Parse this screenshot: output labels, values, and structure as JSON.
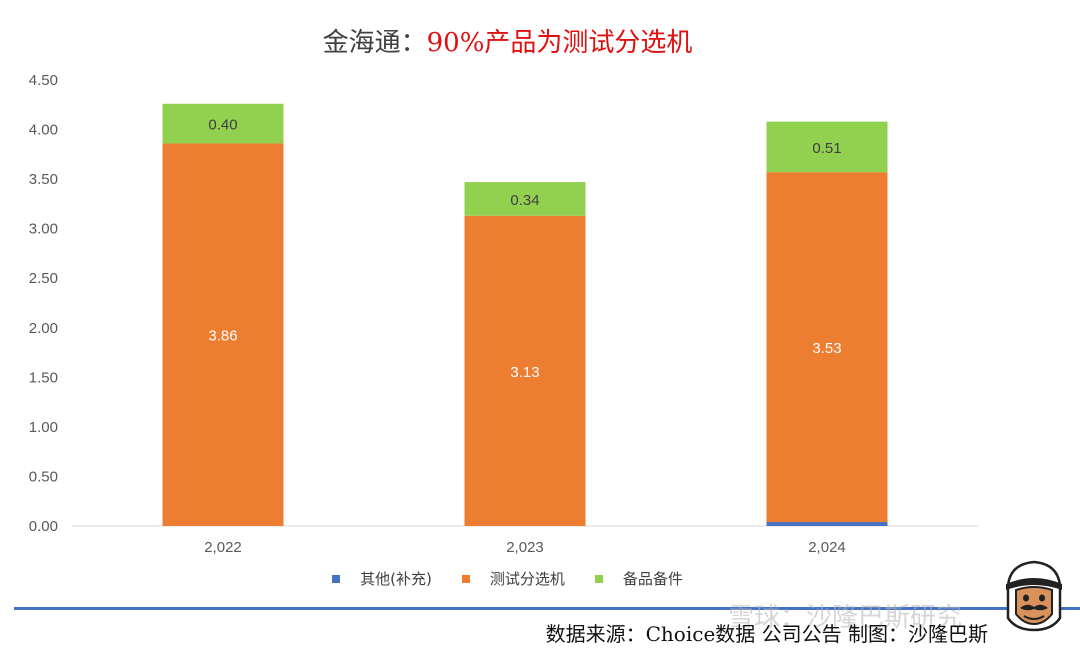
{
  "title": {
    "prefix": "金海通：",
    "highlight": "90%产品为测试分选机"
  },
  "source_text": "数据来源：Choice数据  公司公告  制图：沙隆巴斯",
  "watermark_text": "雪球：沙隆巴斯研究",
  "colors": {
    "other": "#4472c4",
    "sorter": "#ed7d31",
    "spares": "#92d050",
    "title_highlight": "#e01010",
    "rule": "#4472c4"
  },
  "legend": [
    {
      "label": "其他(补充)",
      "color": "#4472c4"
    },
    {
      "label": "测试分选机",
      "color": "#ed7d31"
    },
    {
      "label": "备品备件",
      "color": "#92d050"
    }
  ],
  "chart_data": {
    "type": "bar",
    "stacked": true,
    "categories": [
      "2,022",
      "2,023",
      "2,024"
    ],
    "series": [
      {
        "name": "其他(补充)",
        "values": [
          0,
          0,
          0.04
        ],
        "labels": [
          "",
          "",
          ""
        ]
      },
      {
        "name": "测试分选机",
        "values": [
          3.86,
          3.13,
          3.53
        ],
        "labels": [
          "3.86",
          "3.13",
          "3.53"
        ]
      },
      {
        "name": "备品备件",
        "values": [
          0.4,
          0.34,
          0.51
        ],
        "labels": [
          "0.40",
          "0.34",
          "0.51"
        ]
      }
    ],
    "ylim": [
      0,
      4.5
    ],
    "yticks": [
      "0.00",
      "0.50",
      "1.00",
      "1.50",
      "2.00",
      "2.50",
      "3.00",
      "3.50",
      "4.00",
      "4.50"
    ],
    "grid": false,
    "legend_position": "bottom"
  }
}
